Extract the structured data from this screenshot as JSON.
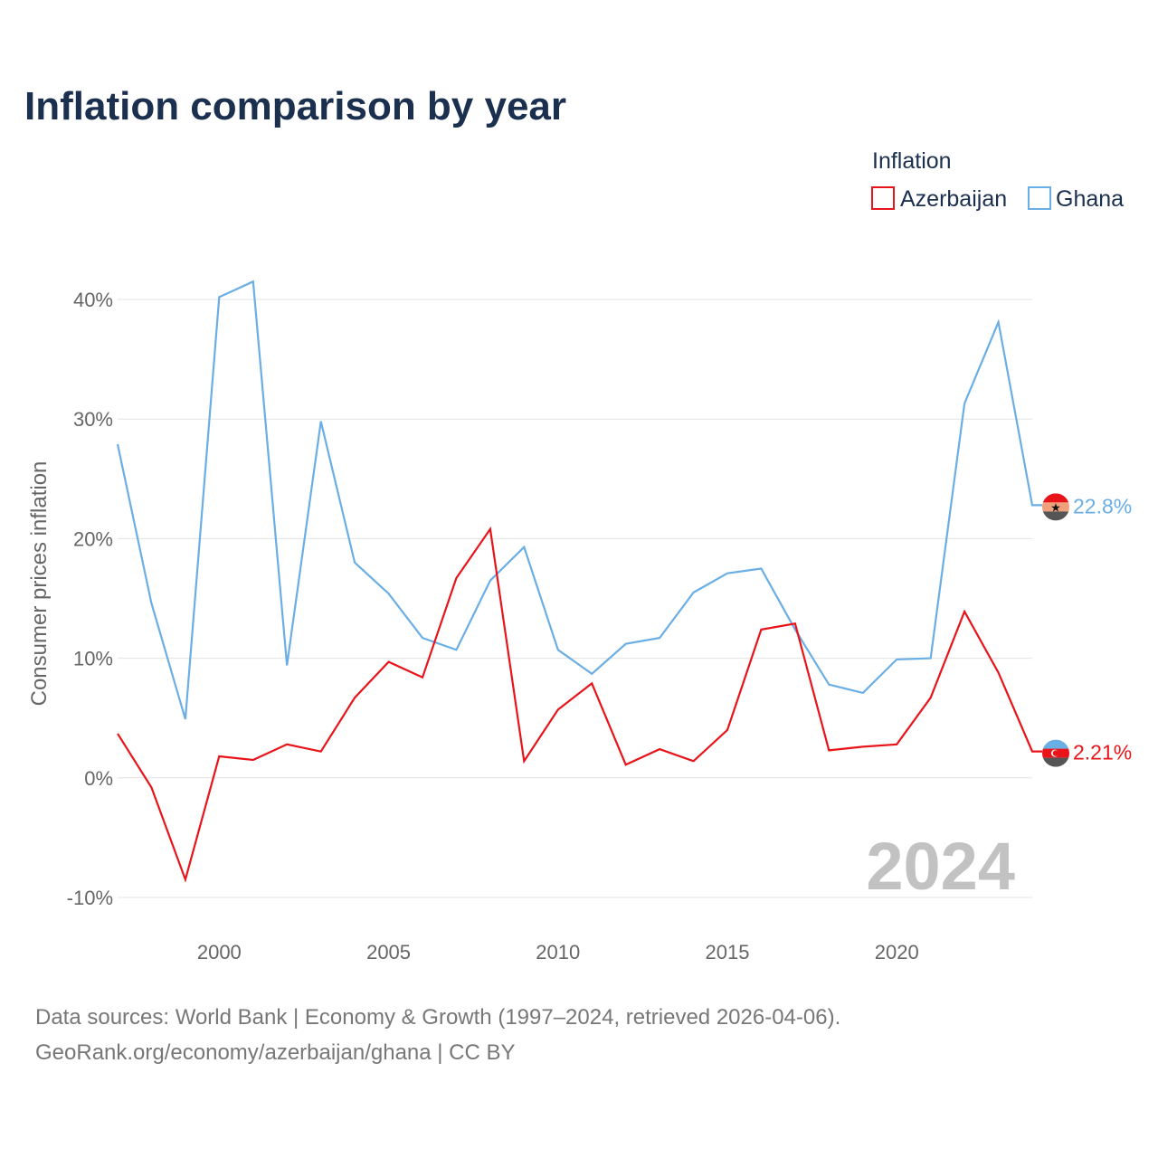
{
  "colors": {
    "azerbaijan": "#e8141a",
    "ghana": "#6aaee6",
    "title": "#1b2f4f",
    "tick": "#666666",
    "grid": "#e3e3e3",
    "watermark": "#c2c2c2"
  },
  "chart_data": {
    "type": "line",
    "title": "Inflation comparison by year",
    "ylabel": "Consumer prices inflation",
    "xlabel": "",
    "xlim": [
      1997,
      2024
    ],
    "ylim": [
      -10,
      40
    ],
    "x_ticks": [
      2000,
      2005,
      2010,
      2015,
      2020
    ],
    "y_ticks": [
      -10,
      0,
      10,
      20,
      30,
      40
    ],
    "y_tick_labels": [
      "-10%",
      "0%",
      "10%",
      "20%",
      "30%",
      "40%"
    ],
    "legend_title": "Inflation",
    "legend_position": "top-right",
    "watermark_year": "2024",
    "x": [
      1997,
      1998,
      1999,
      2000,
      2001,
      2002,
      2003,
      2004,
      2005,
      2006,
      2007,
      2008,
      2009,
      2010,
      2011,
      2012,
      2013,
      2014,
      2015,
      2016,
      2017,
      2018,
      2019,
      2020,
      2021,
      2022,
      2023,
      2024
    ],
    "series": [
      {
        "name": "Azerbaijan",
        "color_key": "azerbaijan",
        "end_label": "2.21%",
        "flag": "azerbaijan-flag-icon",
        "values": [
          3.7,
          -0.8,
          -8.5,
          1.8,
          1.5,
          2.8,
          2.2,
          6.7,
          9.7,
          8.4,
          16.7,
          20.8,
          1.4,
          5.7,
          7.9,
          1.1,
          2.4,
          1.4,
          4.0,
          12.4,
          12.9,
          2.3,
          2.6,
          2.8,
          6.7,
          13.9,
          8.8,
          2.21
        ]
      },
      {
        "name": "Ghana",
        "color_key": "ghana",
        "end_label": "22.8%",
        "flag": "ghana-flag-icon",
        "values": [
          27.9,
          14.6,
          4.9,
          40.2,
          41.5,
          9.4,
          29.8,
          18.0,
          15.4,
          11.7,
          10.7,
          16.5,
          19.3,
          10.7,
          8.7,
          11.2,
          11.7,
          15.5,
          17.1,
          17.5,
          12.4,
          7.8,
          7.1,
          9.9,
          10.0,
          31.3,
          38.1,
          22.8
        ]
      }
    ]
  },
  "source": {
    "line1": "Data sources: World Bank | Economy & Growth (1997–2024, retrieved 2026-04-06).",
    "line2": "GeoRank.org/economy/azerbaijan/ghana | CC BY"
  }
}
